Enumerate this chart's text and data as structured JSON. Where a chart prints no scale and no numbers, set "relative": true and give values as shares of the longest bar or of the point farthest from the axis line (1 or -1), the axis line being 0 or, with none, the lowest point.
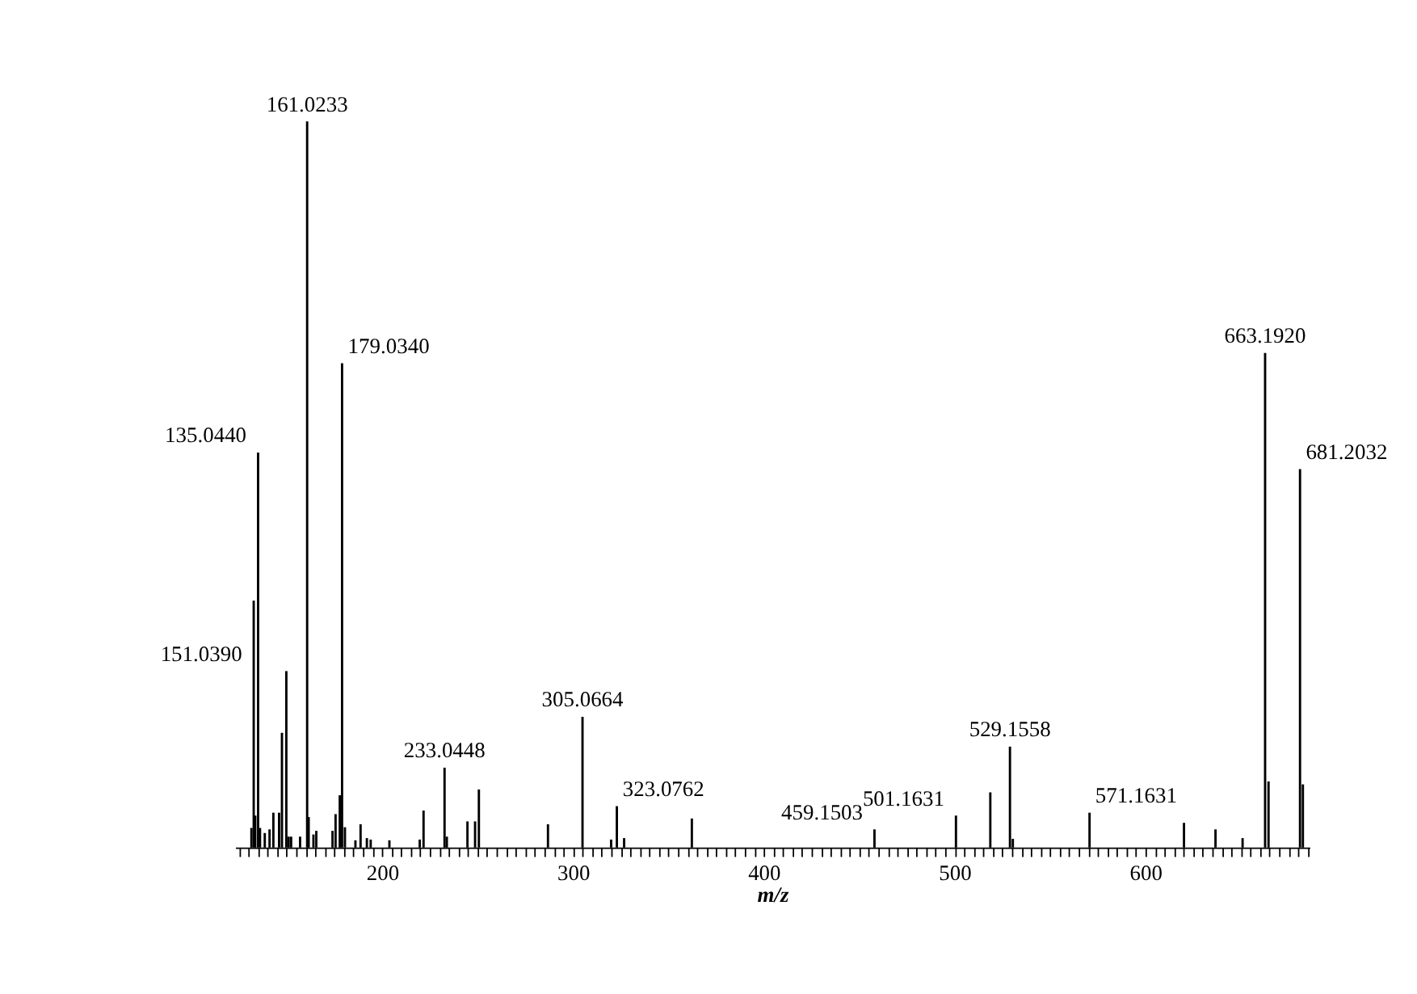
{
  "chart_data": {
    "type": "bar",
    "relative": true,
    "xlabel": "m/z",
    "color": "#000000",
    "grid": false,
    "x": [
      131.5,
      132.7,
      133.5,
      135,
      136,
      138.5,
      141,
      143,
      146,
      147.5,
      149.8,
      151,
      152.3,
      157,
      160.7,
      161.5,
      164,
      165.5,
      174,
      175.6,
      177.8,
      179,
      180.5,
      186,
      188.7,
      192,
      194,
      203.8,
      219.7,
      221.7,
      232.7,
      233.9,
      244.7,
      248.7,
      250.7,
      286.9,
      305,
      320,
      323,
      326.8,
      362.3,
      458,
      500.7,
      518.7,
      529,
      530.5,
      570.7,
      620.2,
      636.7,
      650.9,
      662.7,
      664.5,
      681,
      682.5
    ],
    "values": [
      0.027,
      0.34,
      0.044,
      0.544,
      0.027,
      0.02,
      0.025,
      0.048,
      0.048,
      0.158,
      0.243,
      0.015,
      0.015,
      0.015,
      1.0,
      0.042,
      0.018,
      0.023,
      0.023,
      0.046,
      0.072,
      0.667,
      0.028,
      0.01,
      0.032,
      0.013,
      0.011,
      0.01,
      0.011,
      0.051,
      0.11,
      0.015,
      0.036,
      0.036,
      0.08,
      0.032,
      0.18,
      0.011,
      0.057,
      0.013,
      0.04,
      0.025,
      0.044,
      0.076,
      0.139,
      0.012,
      0.048,
      0.034,
      0.025,
      0.013,
      0.681,
      0.091,
      0.521,
      0.087
    ],
    "xlim": [
      123,
      686
    ],
    "xticks": [
      {
        "value": 125,
        "label": null
      },
      {
        "value": 130,
        "label": null
      },
      {
        "value": 135,
        "label": null
      },
      {
        "value": 140,
        "label": null
      },
      {
        "value": 145,
        "label": null
      },
      {
        "value": 150,
        "label": null
      },
      {
        "value": 155,
        "label": null
      },
      {
        "value": 160,
        "label": null
      },
      {
        "value": 165,
        "label": null
      },
      {
        "value": 170,
        "label": null
      },
      {
        "value": 175,
        "label": null
      },
      {
        "value": 180,
        "label": null
      },
      {
        "value": 185,
        "label": null
      },
      {
        "value": 190,
        "label": null
      },
      {
        "value": 195,
        "label": null
      },
      200,
      {
        "value": 205,
        "label": null
      },
      {
        "value": 210,
        "label": null
      },
      {
        "value": 215,
        "label": null
      },
      {
        "value": 220,
        "label": null
      },
      {
        "value": 225,
        "label": null
      },
      {
        "value": 230,
        "label": null
      },
      {
        "value": 235,
        "label": null
      },
      {
        "value": 240,
        "label": null
      },
      {
        "value": 245,
        "label": null
      },
      {
        "value": 250,
        "label": null
      },
      {
        "value": 255,
        "label": null
      },
      {
        "value": 260,
        "label": null
      },
      {
        "value": 265,
        "label": null
      },
      {
        "value": 270,
        "label": null
      },
      {
        "value": 275,
        "label": null
      },
      {
        "value": 280,
        "label": null
      },
      {
        "value": 285,
        "label": null
      },
      {
        "value": 290,
        "label": null
      },
      {
        "value": 295,
        "label": null
      },
      300,
      {
        "value": 305,
        "label": null
      },
      {
        "value": 310,
        "label": null
      },
      {
        "value": 315,
        "label": null
      },
      {
        "value": 320,
        "label": null
      },
      {
        "value": 325,
        "label": null
      },
      {
        "value": 330,
        "label": null
      },
      {
        "value": 335,
        "label": null
      },
      {
        "value": 340,
        "label": null
      },
      {
        "value": 345,
        "label": null
      },
      {
        "value": 350,
        "label": null
      },
      {
        "value": 355,
        "label": null
      },
      {
        "value": 360,
        "label": null
      },
      {
        "value": 365,
        "label": null
      },
      {
        "value": 370,
        "label": null
      },
      {
        "value": 375,
        "label": null
      },
      {
        "value": 380,
        "label": null
      },
      {
        "value": 385,
        "label": null
      },
      {
        "value": 390,
        "label": null
      },
      {
        "value": 395,
        "label": null
      },
      400,
      {
        "value": 405,
        "label": null
      },
      {
        "value": 410,
        "label": null
      },
      {
        "value": 415,
        "label": null
      },
      {
        "value": 420,
        "label": null
      },
      {
        "value": 425,
        "label": null
      },
      {
        "value": 430,
        "label": null
      },
      {
        "value": 435,
        "label": null
      },
      {
        "value": 440,
        "label": null
      },
      {
        "value": 445,
        "label": null
      },
      {
        "value": 450,
        "label": null
      },
      {
        "value": 455,
        "label": null
      },
      {
        "value": 460,
        "label": null
      },
      {
        "value": 465,
        "label": null
      },
      {
        "value": 470,
        "label": null
      },
      {
        "value": 475,
        "label": null
      },
      {
        "value": 480,
        "label": null
      },
      {
        "value": 485,
        "label": null
      },
      {
        "value": 490,
        "label": null
      },
      {
        "value": 495,
        "label": null
      },
      500,
      {
        "value": 505,
        "label": null
      },
      {
        "value": 510,
        "label": null
      },
      {
        "value": 515,
        "label": null
      },
      {
        "value": 520,
        "label": null
      },
      {
        "value": 525,
        "label": null
      },
      {
        "value": 530,
        "label": null
      },
      {
        "value": 535,
        "label": null
      },
      {
        "value": 540,
        "label": null
      },
      {
        "value": 545,
        "label": null
      },
      {
        "value": 550,
        "label": null
      },
      {
        "value": 555,
        "label": null
      },
      {
        "value": 560,
        "label": null
      },
      {
        "value": 565,
        "label": null
      },
      {
        "value": 570,
        "label": null
      },
      {
        "value": 575,
        "label": null
      },
      {
        "value": 580,
        "label": null
      },
      {
        "value": 585,
        "label": null
      },
      {
        "value": 590,
        "label": null
      },
      {
        "value": 595,
        "label": null
      },
      600,
      {
        "value": 605,
        "label": null
      },
      {
        "value": 610,
        "label": null
      },
      {
        "value": 615,
        "label": null
      },
      {
        "value": 620,
        "label": null
      },
      {
        "value": 625,
        "label": null
      },
      {
        "value": 630,
        "label": null
      },
      {
        "value": 635,
        "label": null
      },
      {
        "value": 640,
        "label": null
      },
      {
        "value": 645,
        "label": null
      },
      {
        "value": 650,
        "label": null
      },
      {
        "value": 655,
        "label": null
      },
      {
        "value": 660,
        "label": null
      },
      {
        "value": 665,
        "label": null
      },
      {
        "value": 670,
        "label": null
      },
      {
        "value": 675,
        "label": null
      },
      {
        "value": 680,
        "label": null
      },
      {
        "value": 685,
        "label": null
      }
    ],
    "annotations": [
      {
        "text": "161.0233",
        "x": 160.7,
        "y": 1.0
      },
      {
        "text": "179.0340",
        "x": 179,
        "y": 0.667
      },
      {
        "text": "135.0440",
        "x": 135,
        "y": 0.544
      },
      {
        "text": "151.0390",
        "x": 151,
        "y": 0.243
      },
      {
        "text": "233.0448",
        "x": 232.7,
        "y": 0.11
      },
      {
        "text": "305.0664",
        "x": 305,
        "y": 0.18
      },
      {
        "text": "323.0762",
        "x": 323,
        "y": 0.057
      },
      {
        "text": "459.1503",
        "x": 458,
        "y": 0.025
      },
      {
        "text": "501.1631",
        "x": 500.7,
        "y": 0.044
      },
      {
        "text": "529.1558",
        "x": 529,
        "y": 0.139
      },
      {
        "text": "571.1631",
        "x": 570.7,
        "y": 0.048
      },
      {
        "text": "663.1920",
        "x": 662.7,
        "y": 0.681
      },
      {
        "text": "681.2032",
        "x": 681,
        "y": 0.521
      }
    ]
  }
}
